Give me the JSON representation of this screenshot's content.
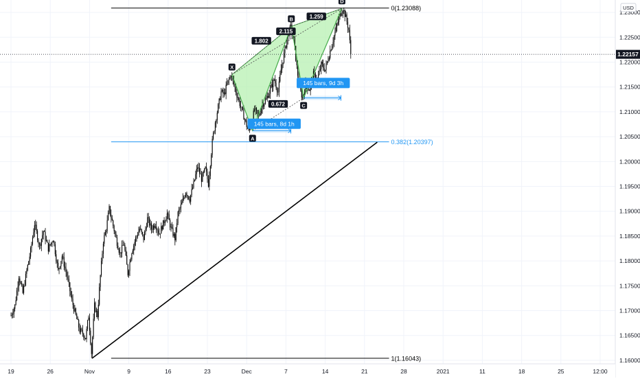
{
  "currency": "USD",
  "current_price_label": "1.22157",
  "colors": {
    "candle": "#000000",
    "grid": "#f0f3fa",
    "pattern_fill": "#b7f0b1",
    "pattern_stroke": "#4caf50",
    "fib": "#2196f3",
    "trendline": "#000000",
    "label_bg": "#131722",
    "tooltip_bg": "#2196f3",
    "price_tag_bg": "#131722"
  },
  "chart_data": {
    "type": "candlestick",
    "x_ticks": [
      "19",
      "26",
      "Nov",
      "9",
      "16",
      "23",
      "Dec",
      "7",
      "14",
      "21",
      "28",
      "2021",
      "11",
      "18",
      "25",
      "12:00"
    ],
    "y_ticks": [
      "1.23000",
      "1.22500",
      "1.22000",
      "1.21500",
      "1.21000",
      "1.20500",
      "1.20000",
      "1.19500",
      "1.19000",
      "1.18500",
      "1.18000",
      "1.17500",
      "1.17000",
      "1.16500",
      "1.16000"
    ],
    "y_tick_values": [
      1.23,
      1.225,
      1.22,
      1.215,
      1.21,
      1.205,
      1.2,
      1.195,
      1.19,
      1.185,
      1.18,
      1.175,
      1.17,
      1.165,
      1.16
    ],
    "ylim": [
      1.1593,
      1.2325
    ],
    "price_path": [
      {
        "t": 0.0,
        "p": 1.169
      },
      {
        "t": 0.4,
        "p": 1.171
      },
      {
        "t": 0.8,
        "p": 1.177
      },
      {
        "t": 1.2,
        "p": 1.1735
      },
      {
        "t": 1.6,
        "p": 1.178
      },
      {
        "t": 2.0,
        "p": 1.182
      },
      {
        "t": 2.4,
        "p": 1.1875
      },
      {
        "t": 2.9,
        "p": 1.183
      },
      {
        "t": 3.3,
        "p": 1.186
      },
      {
        "t": 3.8,
        "p": 1.1825
      },
      {
        "t": 4.3,
        "p": 1.1845
      },
      {
        "t": 4.8,
        "p": 1.178
      },
      {
        "t": 5.2,
        "p": 1.181
      },
      {
        "t": 5.7,
        "p": 1.177
      },
      {
        "t": 6.2,
        "p": 1.172
      },
      {
        "t": 6.6,
        "p": 1.169
      },
      {
        "t": 7.0,
        "p": 1.166
      },
      {
        "t": 7.3,
        "p": 1.1655
      },
      {
        "t": 7.6,
        "p": 1.1645
      },
      {
        "t": 7.9,
        "p": 1.169
      },
      {
        "t": 8.2,
        "p": 1.1615
      },
      {
        "t": 8.5,
        "p": 1.171
      },
      {
        "t": 8.8,
        "p": 1.169
      },
      {
        "t": 9.1,
        "p": 1.177
      },
      {
        "t": 9.4,
        "p": 1.184
      },
      {
        "t": 9.7,
        "p": 1.1865
      },
      {
        "t": 10.0,
        "p": 1.1905
      },
      {
        "t": 10.3,
        "p": 1.188
      },
      {
        "t": 10.7,
        "p": 1.1845
      },
      {
        "t": 11.1,
        "p": 1.1815
      },
      {
        "t": 11.5,
        "p": 1.1835
      },
      {
        "t": 11.9,
        "p": 1.1775
      },
      {
        "t": 12.3,
        "p": 1.182
      },
      {
        "t": 12.7,
        "p": 1.1845
      },
      {
        "t": 13.1,
        "p": 1.1865
      },
      {
        "t": 13.5,
        "p": 1.1845
      },
      {
        "t": 13.9,
        "p": 1.1885
      },
      {
        "t": 14.3,
        "p": 1.1865
      },
      {
        "t": 14.7,
        "p": 1.1875
      },
      {
        "t": 15.1,
        "p": 1.1855
      },
      {
        "t": 15.5,
        "p": 1.1875
      },
      {
        "t": 15.9,
        "p": 1.1895
      },
      {
        "t": 16.3,
        "p": 1.1865
      },
      {
        "t": 16.7,
        "p": 1.1845
      },
      {
        "t": 17.0,
        "p": 1.1895
      },
      {
        "t": 17.4,
        "p": 1.1915
      },
      {
        "t": 17.8,
        "p": 1.194
      },
      {
        "t": 18.2,
        "p": 1.1925
      },
      {
        "t": 18.6,
        "p": 1.1955
      },
      {
        "t": 19.0,
        "p": 1.199
      },
      {
        "t": 19.4,
        "p": 1.1965
      },
      {
        "t": 19.8,
        "p": 1.1985
      },
      {
        "t": 20.1,
        "p": 1.1955
      },
      {
        "t": 20.5,
        "p": 1.204
      },
      {
        "t": 20.8,
        "p": 1.208
      },
      {
        "t": 21.1,
        "p": 1.211
      },
      {
        "t": 21.4,
        "p": 1.214
      },
      {
        "t": 21.7,
        "p": 1.2135
      },
      {
        "t": 22.0,
        "p": 1.2155
      },
      {
        "t": 22.4,
        "p": 1.2175
      },
      {
        "t": 22.7,
        "p": 1.2155
      },
      {
        "t": 23.0,
        "p": 1.2135
      },
      {
        "t": 23.4,
        "p": 1.211
      },
      {
        "t": 23.8,
        "p": 1.2085
      },
      {
        "t": 24.2,
        "p": 1.206
      },
      {
        "t": 24.5,
        "p": 1.2078
      },
      {
        "t": 24.8,
        "p": 1.2105
      },
      {
        "t": 25.2,
        "p": 1.209
      },
      {
        "t": 25.6,
        "p": 1.2115
      },
      {
        "t": 26.0,
        "p": 1.2125
      },
      {
        "t": 26.4,
        "p": 1.2145
      },
      {
        "t": 26.8,
        "p": 1.2165
      },
      {
        "t": 27.2,
        "p": 1.214
      },
      {
        "t": 27.5,
        "p": 1.2185
      },
      {
        "t": 27.9,
        "p": 1.2225
      },
      {
        "t": 28.2,
        "p": 1.2255
      },
      {
        "t": 28.5,
        "p": 1.227
      },
      {
        "t": 28.8,
        "p": 1.2245
      },
      {
        "t": 29.1,
        "p": 1.219
      },
      {
        "t": 29.4,
        "p": 1.2145
      },
      {
        "t": 29.7,
        "p": 1.2128
      },
      {
        "t": 30.0,
        "p": 1.2155
      },
      {
        "t": 30.4,
        "p": 1.2145
      },
      {
        "t": 30.8,
        "p": 1.2175
      },
      {
        "t": 31.2,
        "p": 1.2165
      },
      {
        "t": 31.6,
        "p": 1.2195
      },
      {
        "t": 32.0,
        "p": 1.2185
      },
      {
        "t": 32.4,
        "p": 1.2215
      },
      {
        "t": 32.8,
        "p": 1.2245
      },
      {
        "t": 33.2,
        "p": 1.2275
      },
      {
        "t": 33.5,
        "p": 1.2295
      },
      {
        "t": 33.8,
        "p": 1.2308
      },
      {
        "t": 34.1,
        "p": 1.229
      },
      {
        "t": 34.4,
        "p": 1.2265
      },
      {
        "t": 34.6,
        "p": 1.2216
      }
    ],
    "trendline": {
      "from": {
        "t": 8.25,
        "p": 1.1604
      },
      "to": {
        "t": 37.3,
        "p": 1.2039
      }
    },
    "fib_levels": [
      {
        "id": "fib-0",
        "label": "0(1.23088)",
        "value": 1.23088,
        "color": "#000000",
        "t_start": 10.2,
        "t_end": 38.5
      },
      {
        "id": "fib-0382",
        "label": "0.382(1.20397)",
        "value": 1.20397,
        "color": "#2196f3",
        "t_start": 10.2,
        "t_end": 38.5
      },
      {
        "id": "fib-1",
        "label": "1(1.16043)",
        "value": 1.16043,
        "color": "#000000",
        "t_start": 10.2,
        "t_end": 38.5
      }
    ],
    "harmonic_pattern": {
      "points": [
        {
          "name": "X",
          "t": 22.5,
          "p": 1.2175
        },
        {
          "name": "A",
          "t": 24.6,
          "p": 1.2062
        },
        {
          "name": "B",
          "t": 28.55,
          "p": 1.2272
        },
        {
          "name": "C",
          "t": 29.8,
          "p": 1.2128
        },
        {
          "name": "D",
          "t": 33.7,
          "p": 1.2308
        }
      ],
      "ratios": [
        {
          "label": "1.802",
          "t": 25.5,
          "p": 1.2243
        },
        {
          "label": "2.115",
          "t": 28.0,
          "p": 1.2262
        },
        {
          "label": "1.259",
          "t": 31.1,
          "p": 1.2292
        },
        {
          "label": "0.672",
          "t": 27.2,
          "p": 1.2116
        }
      ],
      "tooltips": [
        {
          "label": "145 bars, 8d 1h",
          "t": 26.8,
          "p": 1.2076
        },
        {
          "label": "145 bars, 9d 3h",
          "t": 31.8,
          "p": 1.2158
        }
      ],
      "ranges": [
        {
          "id": "range-a",
          "t_start": 24.6,
          "t_end": 28.5,
          "p": 1.2062
        },
        {
          "id": "range-c",
          "t_start": 29.8,
          "t_end": 33.6,
          "p": 1.2128
        }
      ]
    }
  }
}
